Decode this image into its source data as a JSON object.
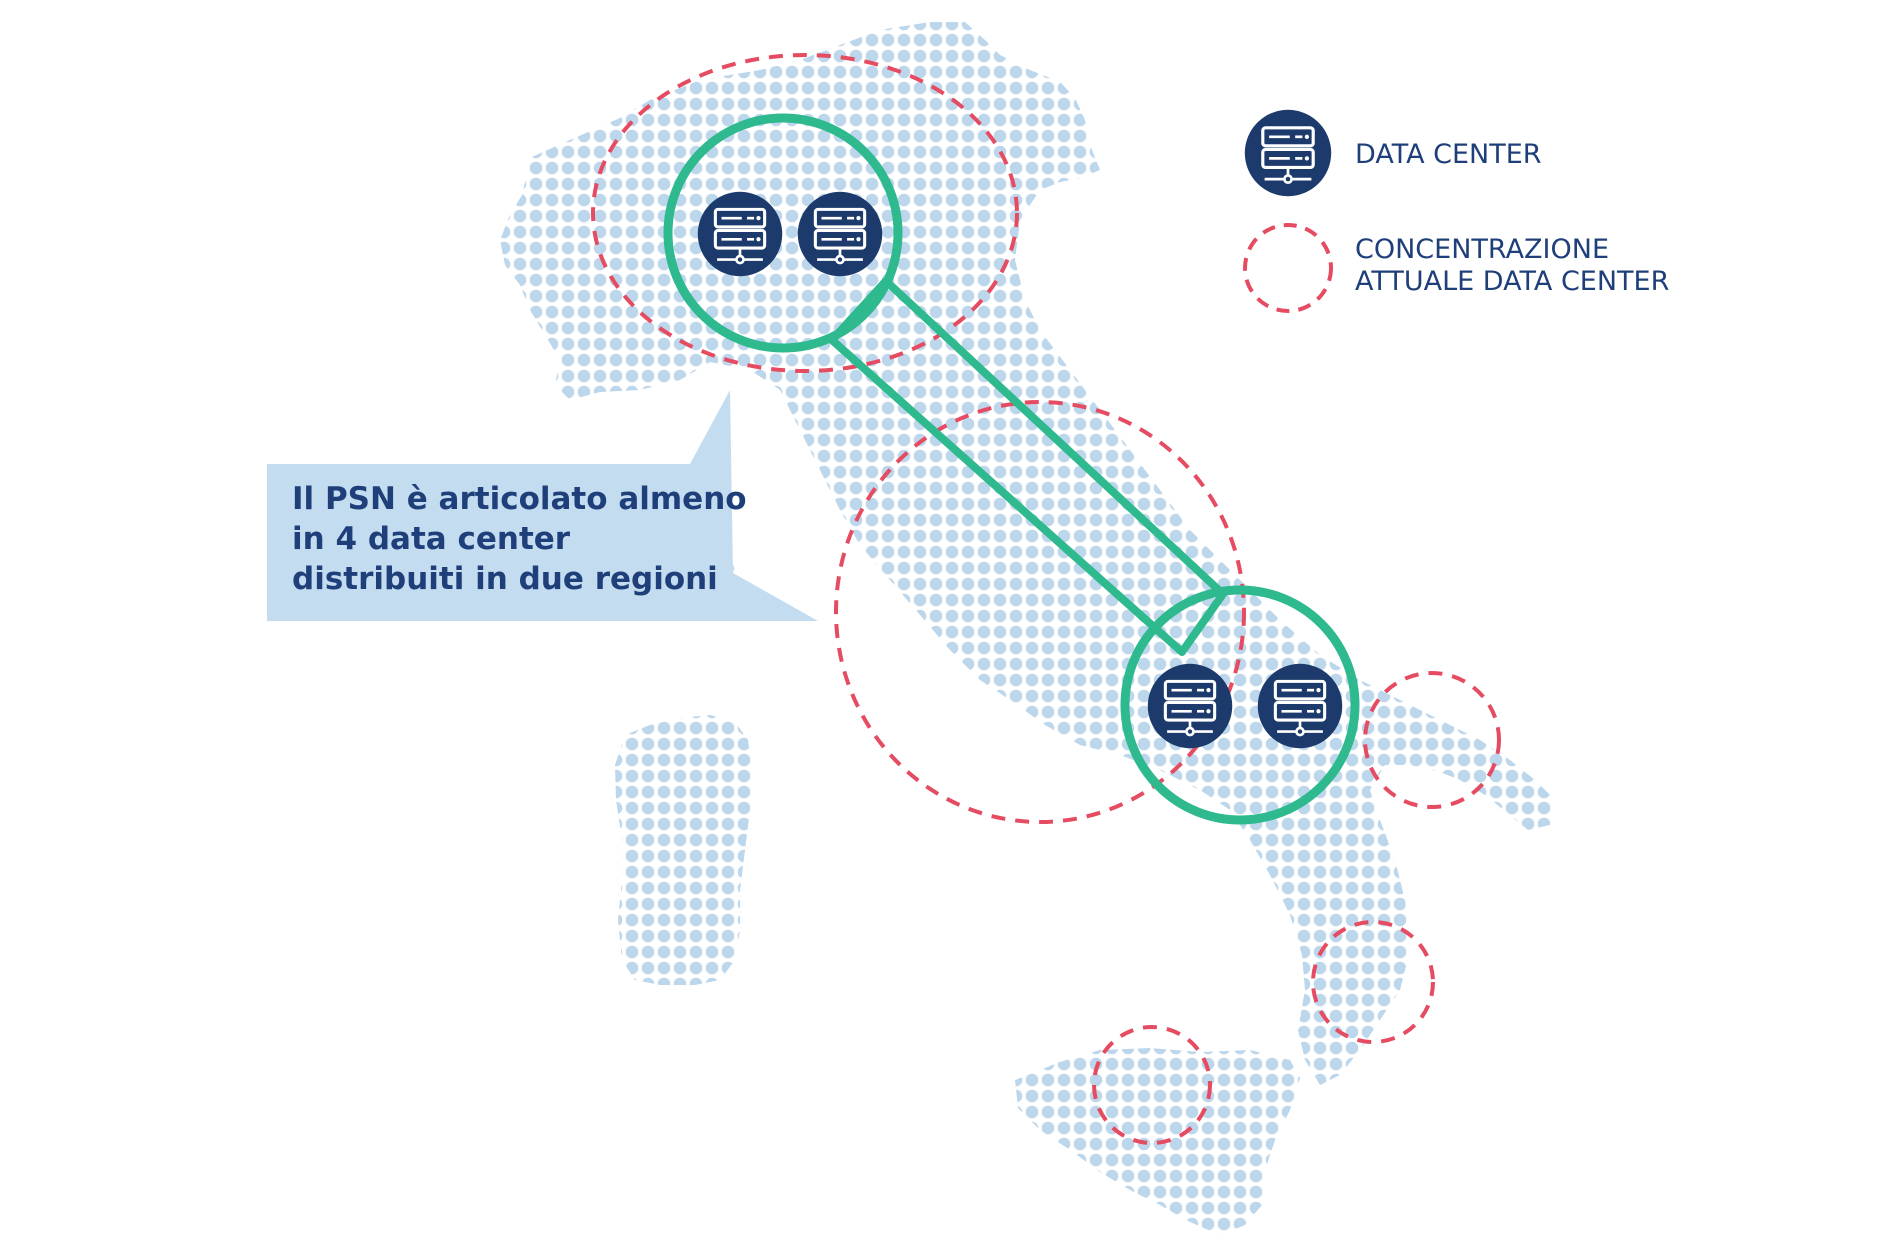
{
  "legend": {
    "data_center": "DATA CENTER",
    "concentration_line1": "CONCENTRAZIONE",
    "concentration_line2": "ATTUALE DATA CENTER"
  },
  "callout": {
    "line1": "Il PSN è articolato almeno",
    "line2": "in 4 data center",
    "line3": "distribuiti in due regioni"
  },
  "colors": {
    "land_dots": "#bcd6ec",
    "data_center_fill": "#1c3a6b",
    "connection_green": "#2fb98e",
    "concentration_red": "#e54b61",
    "callout_bg": "#c4dcef",
    "text_blue": "#1f3f7a"
  },
  "icons": {
    "data_center": "server-rack-icon",
    "concentration": "dashed-circle-icon"
  },
  "data_center_count": 4,
  "region_count": 2
}
